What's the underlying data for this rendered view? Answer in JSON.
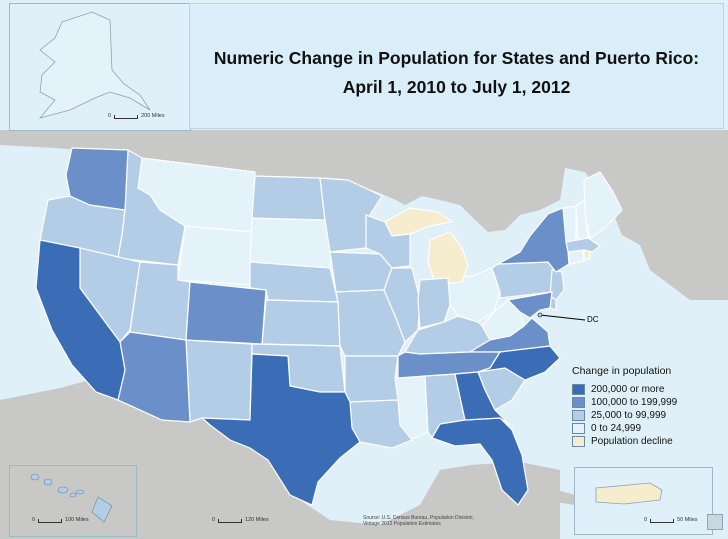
{
  "title": {
    "line1": "Numeric Change in Population for States and Puerto Rico:",
    "line2": "April 1, 2010 to July 1, 2012"
  },
  "legend": {
    "title": "Change in population",
    "items": [
      {
        "label": "200,000 or more",
        "color": "#3b6db6"
      },
      {
        "label": "100,000 to 199,999",
        "color": "#6a8fc9"
      },
      {
        "label": "25,000 to 99,999",
        "color": "#b4cde6"
      },
      {
        "label": "0 to 24,999",
        "color": "#e4f2f9"
      },
      {
        "label": "Population decline",
        "color": "#f6ecce"
      }
    ]
  },
  "scales": {
    "alaska": {
      "zero": "0",
      "label": "200 Miles"
    },
    "hawaii": {
      "zero": "0",
      "label": "100 Miles"
    },
    "mainland": {
      "zero": "0",
      "label": "120 Miles"
    },
    "puerto_rico": {
      "zero": "0",
      "label": "50 Miles"
    }
  },
  "dc_label": "DC",
  "source": {
    "line1": "Source: U.S. Census Bureau, Population Division,",
    "line2": "Vintage 2012 Population Estimates"
  },
  "colors": {
    "water": "#dff0f8",
    "neighbor_land": "#c8c8c6",
    "border": "#ffffff"
  },
  "state_categories": {
    "200,000 or more": [
      "California",
      "Texas",
      "Florida",
      "Georgia",
      "North Carolina"
    ],
    "100,000 to 199,999": [
      "Washington",
      "Arizona",
      "Colorado",
      "Virginia",
      "New York",
      "Tennessee",
      "Maryland"
    ],
    "25,000 to 99,999": [
      "Oregon",
      "Idaho",
      "Nevada",
      "Utah",
      "New Mexico",
      "North Dakota",
      "Nebraska",
      "Kansas",
      "Oklahoma",
      "Minnesota",
      "Iowa",
      "Missouri",
      "Arkansas",
      "Louisiana",
      "Wisconsin",
      "Illinois",
      "Indiana",
      "Kentucky",
      "Alabama",
      "South Carolina",
      "Pennsylvania",
      "New Jersey",
      "Massachusetts",
      "Hawaii",
      "Delaware",
      "District of Columbia"
    ],
    "0 to 24,999": [
      "Montana",
      "Wyoming",
      "South Dakota",
      "Mississippi",
      "Ohio",
      "West Virginia",
      "Maine",
      "New Hampshire",
      "Vermont",
      "Connecticut",
      "Alaska"
    ],
    "Population decline": [
      "Michigan",
      "Rhode Island",
      "Puerto Rico"
    ]
  }
}
